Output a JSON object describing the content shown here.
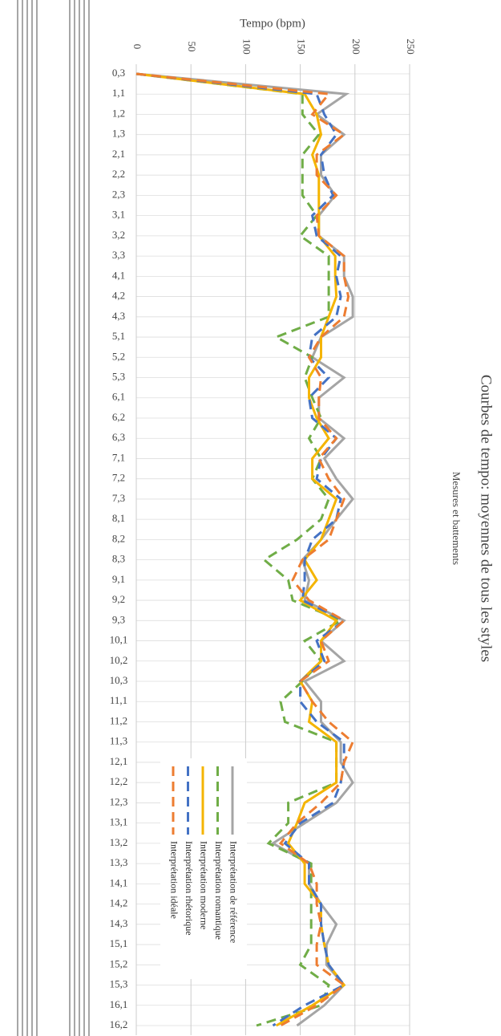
{
  "chart_data": {
    "type": "line",
    "title": "Courbes de tempo: moyennes de tous les styles",
    "x_label": "Mesures et battements",
    "y_label": "Tempo (bpm)",
    "categories": [
      "0,3",
      "1,1",
      "1,2",
      "1,3",
      "2,1",
      "2,2",
      "2,3",
      "3,1",
      "3,2",
      "3,3",
      "4,1",
      "4,2",
      "4,3",
      "5,1",
      "5,2",
      "5,3",
      "6,1",
      "6,2",
      "6,3",
      "7,1",
      "7,2",
      "7,3",
      "8,1",
      "8,2",
      "8,3",
      "9,1",
      "9,2",
      "9,3",
      "10,1",
      "10,2",
      "10,3",
      "11,1",
      "11,2",
      "11,3",
      "12,1",
      "12,2",
      "12,3",
      "13,1",
      "13,2",
      "13,3",
      "14,1",
      "14,2",
      "14,3",
      "15,1",
      "15,2",
      "15,3",
      "16,1",
      "16,2"
    ],
    "ylim": [
      0,
      250
    ],
    "yticks": [
      0,
      50,
      100,
      150,
      200,
      250
    ],
    "grid": true,
    "series": [
      {
        "name": "Interprétation de référence",
        "color": "#a5a5a5",
        "dashed": false,
        "values": [
          0,
          192,
          165,
          190,
          169,
          169,
          182,
          167,
          167,
          190,
          190,
          198,
          198,
          169,
          161,
          190,
          167,
          167,
          190,
          172,
          183,
          198,
          183,
          169,
          152,
          158,
          154,
          190,
          169,
          190,
          154,
          169,
          169,
          187,
          187,
          198,
          183,
          154,
          125,
          158,
          158,
          169,
          183,
          174,
          174,
          190,
          172,
          147
        ]
      },
      {
        "name": "Interprétation romantique",
        "color": "#70ad47",
        "dashed": true,
        "values": [
          0,
          152,
          152,
          167,
          152,
          152,
          152,
          165,
          150,
          176,
          176,
          176,
          176,
          128,
          161,
          154,
          161,
          169,
          158,
          169,
          161,
          176,
          169,
          147,
          117,
          139,
          143,
          187,
          154,
          169,
          152,
          132,
          136,
          183,
          183,
          183,
          139,
          139,
          121,
          160,
          160,
          160,
          160,
          160,
          150,
          176,
          169,
          110
        ]
      },
      {
        "name": "Interprétation moderne",
        "color": "#f4b400",
        "dashed": false,
        "values": [
          0,
          154,
          165,
          169,
          161,
          167,
          167,
          167,
          167,
          182,
          182,
          183,
          176,
          169,
          169,
          158,
          158,
          165,
          176,
          161,
          161,
          183,
          176,
          169,
          154,
          165,
          150,
          183,
          169,
          169,
          150,
          161,
          158,
          183,
          183,
          183,
          154,
          147,
          139,
          154,
          154,
          169,
          169,
          172,
          176,
          190,
          161,
          128
        ]
      },
      {
        "name": "Interprétation rhétorique",
        "color": "#4472c4",
        "dashed": true,
        "values": [
          0,
          165,
          172,
          183,
          169,
          172,
          180,
          161,
          165,
          187,
          183,
          187,
          183,
          161,
          158,
          176,
          158,
          161,
          183,
          169,
          165,
          187,
          183,
          161,
          154,
          154,
          152,
          190,
          165,
          172,
          150,
          150,
          165,
          190,
          190,
          187,
          180,
          150,
          136,
          158,
          158,
          169,
          169,
          172,
          176,
          190,
          154,
          125
        ]
      },
      {
        "name": "Interprétation idéale",
        "color": "#ed7d31",
        "dashed": true,
        "values": [
          0,
          176,
          161,
          190,
          165,
          165,
          183,
          165,
          167,
          190,
          190,
          194,
          190,
          169,
          158,
          169,
          167,
          167,
          183,
          167,
          176,
          190,
          183,
          176,
          152,
          143,
          158,
          190,
          169,
          176,
          150,
          161,
          176,
          198,
          190,
          187,
          169,
          147,
          132,
          158,
          165,
          165,
          169,
          165,
          165,
          190,
          165,
          132
        ]
      }
    ]
  }
}
